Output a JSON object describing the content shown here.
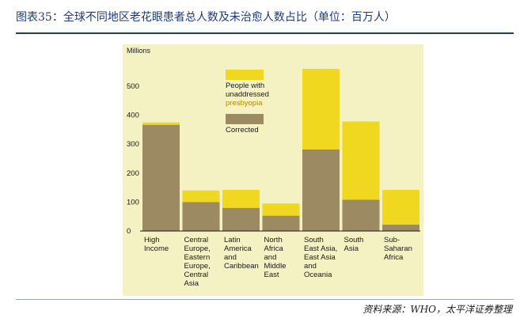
{
  "figure": {
    "title": "图表35：全球不同地区老花眼患者总人数及未治愈人数占比（单位：百万人）",
    "source": "资料来源：WHO，太平洋证券整理"
  },
  "chart_data": {
    "type": "bar",
    "stacked": true,
    "ylabel": "Millions",
    "ylim": [
      0,
      550
    ],
    "yticks": [
      0,
      100,
      200,
      300,
      400,
      500
    ],
    "categories": [
      [
        "High",
        "Income"
      ],
      [
        "Central",
        "Europe,",
        "Eastern",
        "Europe,",
        "Central",
        "Asia"
      ],
      [
        "Latin",
        "America",
        "and",
        "Caribbean"
      ],
      [
        "North",
        "Africa",
        "and",
        "Middle",
        "East"
      ],
      [
        "South",
        "East Asia,",
        "East Asia",
        "and",
        "Oceania"
      ],
      [
        "South",
        "Asia"
      ],
      [
        "Sub-",
        "Saharan",
        "Africa"
      ]
    ],
    "series": [
      {
        "name": "Corrected",
        "color": "#9c8a62",
        "values": [
          367,
          100,
          80,
          53,
          282,
          108,
          22
        ]
      },
      {
        "name": "People with unaddressed presbyopia",
        "color": "#f0d820",
        "values": [
          8,
          40,
          62,
          42,
          278,
          270,
          120
        ]
      }
    ],
    "legend": [
      {
        "lines": [
          "People with",
          "unaddressed",
          "presbyopia"
        ],
        "color": "#f0d820",
        "highlight_line": 2,
        "highlight_color": "#b98a00"
      },
      {
        "lines": [
          "Corrected"
        ],
        "color": "#9c8a62"
      }
    ],
    "background": "#f4f1c2",
    "grid": false
  }
}
